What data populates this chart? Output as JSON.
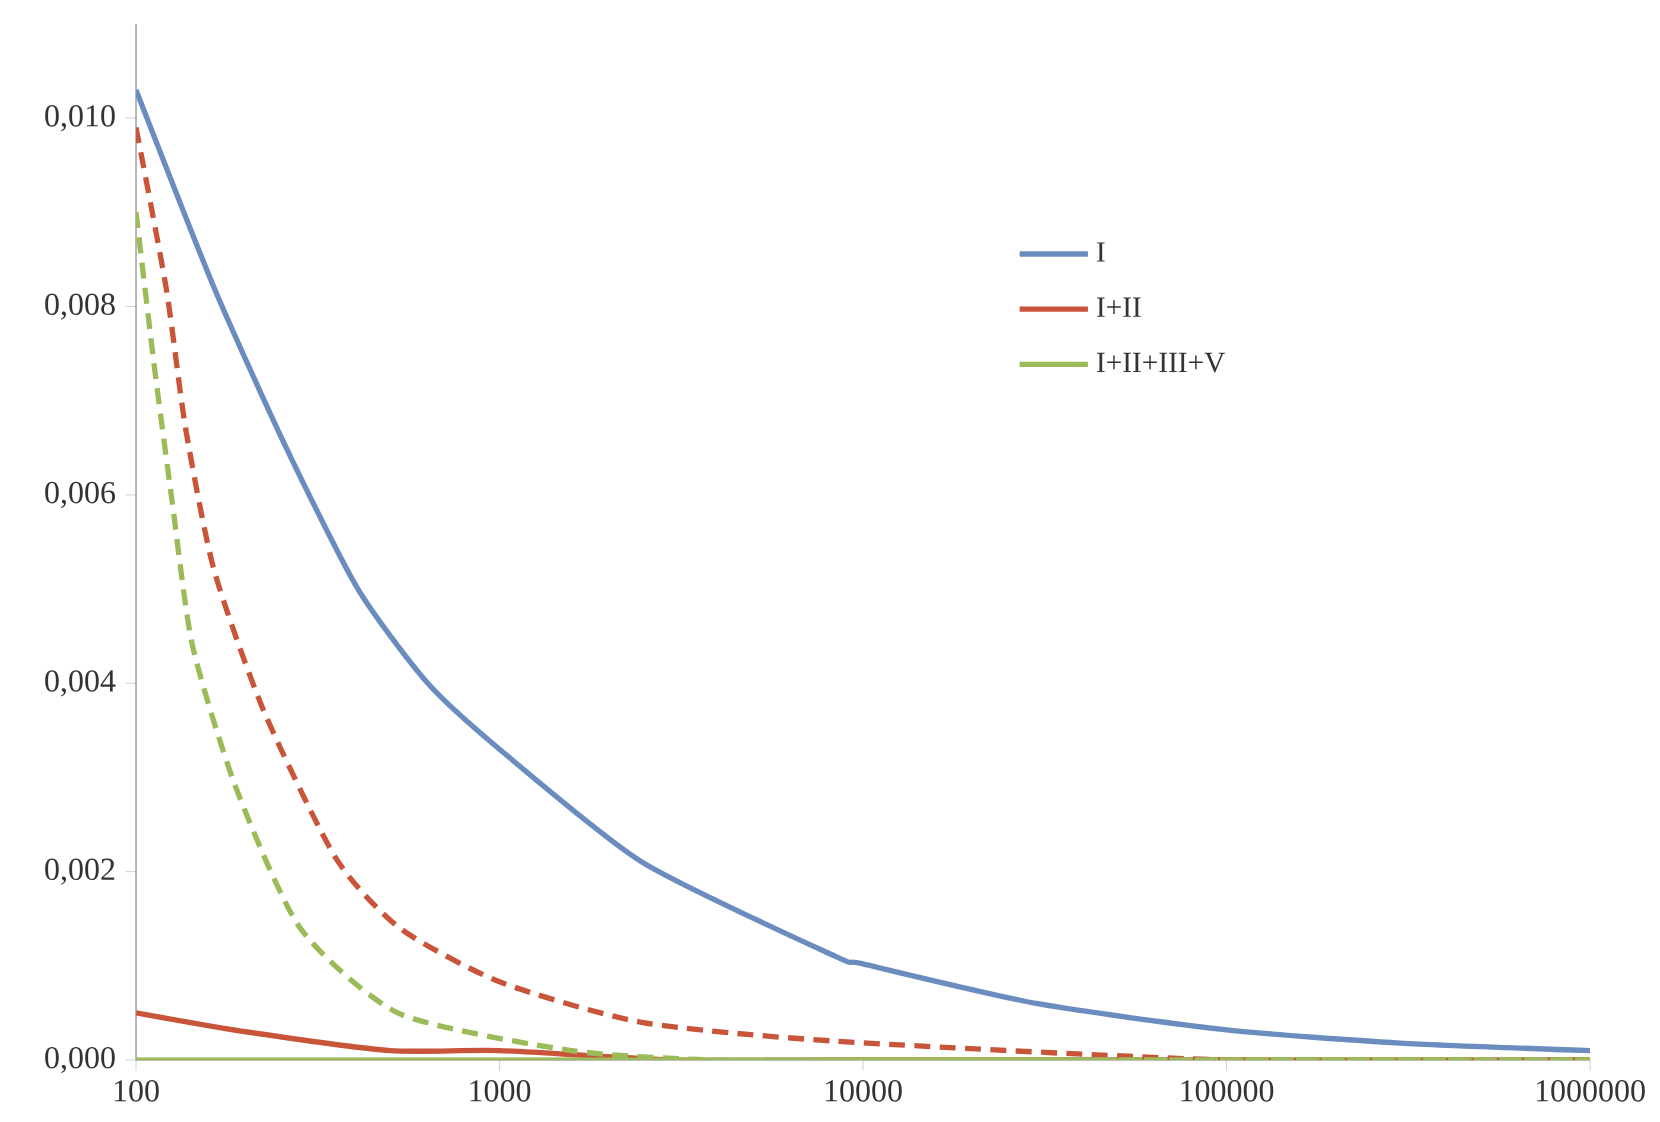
{
  "chart_data": {
    "type": "line",
    "log": "x",
    "xlim": [
      100,
      1000000
    ],
    "ylim": [
      0,
      0.011
    ],
    "xticks": [
      100,
      1000,
      10000,
      100000,
      1000000
    ],
    "yticks": [
      {
        "value": 0,
        "label": "0,000"
      },
      {
        "value": 0.002,
        "label": "0,002"
      },
      {
        "value": 0.004,
        "label": "0,004"
      },
      {
        "value": 0.006,
        "label": "0,006"
      },
      {
        "value": 0.008,
        "label": "0,008"
      },
      {
        "value": 0.01,
        "label": "0,010"
      }
    ],
    "grid": false,
    "legend": "right",
    "marker": "none",
    "series": [
      {
        "name": "I",
        "color": "#6b8cbe",
        "line_style": "solid",
        "x": [
          100,
          164,
          259,
          408,
          635,
          1000,
          2470,
          8400,
          10000,
          30000,
          100000,
          300000,
          1000000
        ],
        "values": [
          0.0103,
          0.0082,
          0.0065,
          0.005,
          0.004,
          0.0033,
          0.0021,
          0.0011,
          0.00102,
          0.0006,
          0.00032,
          0.00018,
          0.0001
        ]
      },
      {
        "name": "I+II",
        "color": "#c8553a",
        "line_style": "solid",
        "x": [
          100,
          200,
          500,
          1000,
          3000,
          10000,
          1000000
        ],
        "values": [
          0.0005,
          0.0003,
          0.0001,
          0.0001,
          0,
          0,
          0
        ]
      },
      {
        "name": "I+II+III+V",
        "color": "#9bbb59",
        "line_style": "solid",
        "x": [
          100,
          1000,
          1000000
        ],
        "values": [
          0,
          0,
          0
        ]
      },
      {
        "color": "#c8553a",
        "line_style": "dashed",
        "x": [
          100,
          121,
          137,
          164,
          225,
          355,
          532,
          1000,
          2460,
          8400,
          100000,
          1000000
        ],
        "values": [
          0.0099,
          0.0082,
          0.0067,
          0.0052,
          0.0037,
          0.00214,
          0.0014,
          0.00083,
          0.0004,
          0.0002,
          0,
          0
        ]
      },
      {
        "color": "#9bbb59",
        "line_style": "dashed",
        "x": [
          100,
          112,
          126,
          143,
          188,
          283,
          532,
          1580,
          4000,
          20000,
          1000000
        ],
        "values": [
          0.009,
          0.0074,
          0.0059,
          0.0044,
          0.0029,
          0.0014,
          0.00049,
          0.0001,
          0,
          0,
          0
        ]
      }
    ]
  }
}
